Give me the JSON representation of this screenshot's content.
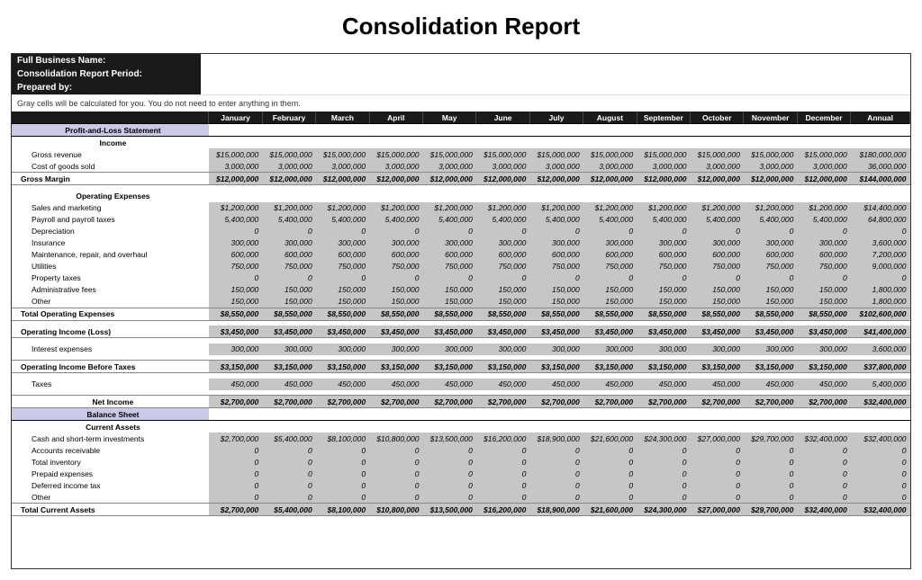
{
  "title": "Consolidation Report",
  "header": {
    "business_name_label": "Full Business Name:",
    "period_label": "Consolidation Report Period:",
    "prepared_by_label": "Prepared by:"
  },
  "note": "Gray cells will be calculated for you. You do not need to enter anything in them.",
  "months": [
    "January",
    "February",
    "March",
    "April",
    "May",
    "June",
    "July",
    "August",
    "September",
    "October",
    "November",
    "December",
    "Annual"
  ],
  "colors": {
    "band_bg": "#c9c9e8",
    "grey_bg": "#c6c6c6",
    "header_bg": "#1a1a1a",
    "text": "#000000",
    "border": "#333333"
  },
  "pl": {
    "section_label": "Profit-and-Loss Statement",
    "income_label": "Income",
    "gross_revenue": {
      "label": "Gross revenue",
      "values": [
        "$15,000,000",
        "$15,000,000",
        "$15,000,000",
        "$15,000,000",
        "$15,000,000",
        "$15,000,000",
        "$15,000,000",
        "$15,000,000",
        "$15,000,000",
        "$15,000,000",
        "$15,000,000",
        "$15,000,000",
        "$180,000,000"
      ],
      "grey": true
    },
    "cogs": {
      "label": "Cost of goods sold",
      "values": [
        "3,000,000",
        "3,000,000",
        "3,000,000",
        "3,000,000",
        "3,000,000",
        "3,000,000",
        "3,000,000",
        "3,000,000",
        "3,000,000",
        "3,000,000",
        "3,000,000",
        "3,000,000",
        "36,000,000"
      ],
      "grey": true
    },
    "gross_margin": {
      "label": "Gross Margin",
      "values": [
        "$12,000,000",
        "$12,000,000",
        "$12,000,000",
        "$12,000,000",
        "$12,000,000",
        "$12,000,000",
        "$12,000,000",
        "$12,000,000",
        "$12,000,000",
        "$12,000,000",
        "$12,000,000",
        "$12,000,000",
        "$144,000,000"
      ],
      "grey": true,
      "bold": true
    },
    "opex_label": "Operating Expenses",
    "opex_rows": [
      {
        "label": "Sales and marketing",
        "values": [
          "$1,200,000",
          "$1,200,000",
          "$1,200,000",
          "$1,200,000",
          "$1,200,000",
          "$1,200,000",
          "$1,200,000",
          "$1,200,000",
          "$1,200,000",
          "$1,200,000",
          "$1,200,000",
          "$1,200,000",
          "$14,400,000"
        ],
        "grey": true
      },
      {
        "label": "Payroll and payroll taxes",
        "values": [
          "5,400,000",
          "5,400,000",
          "5,400,000",
          "5,400,000",
          "5,400,000",
          "5,400,000",
          "5,400,000",
          "5,400,000",
          "5,400,000",
          "5,400,000",
          "5,400,000",
          "5,400,000",
          "64,800,000"
        ],
        "grey": true
      },
      {
        "label": "Depreciation",
        "values": [
          "0",
          "0",
          "0",
          "0",
          "0",
          "0",
          "0",
          "0",
          "0",
          "0",
          "0",
          "0",
          "0"
        ],
        "grey": true
      },
      {
        "label": "Insurance",
        "values": [
          "300,000",
          "300,000",
          "300,000",
          "300,000",
          "300,000",
          "300,000",
          "300,000",
          "300,000",
          "300,000",
          "300,000",
          "300,000",
          "300,000",
          "3,600,000"
        ],
        "grey": true
      },
      {
        "label": "Maintenance, repair, and overhaul",
        "values": [
          "600,000",
          "600,000",
          "600,000",
          "600,000",
          "600,000",
          "600,000",
          "600,000",
          "600,000",
          "600,000",
          "600,000",
          "600,000",
          "600,000",
          "7,200,000"
        ],
        "grey": true
      },
      {
        "label": "Utilities",
        "values": [
          "750,000",
          "750,000",
          "750,000",
          "750,000",
          "750,000",
          "750,000",
          "750,000",
          "750,000",
          "750,000",
          "750,000",
          "750,000",
          "750,000",
          "9,000,000"
        ],
        "grey": true
      },
      {
        "label": "Property taxes",
        "values": [
          "0",
          "0",
          "0",
          "0",
          "0",
          "0",
          "0",
          "0",
          "0",
          "0",
          "0",
          "0",
          "0"
        ],
        "grey": true
      },
      {
        "label": "Administrative fees",
        "values": [
          "150,000",
          "150,000",
          "150,000",
          "150,000",
          "150,000",
          "150,000",
          "150,000",
          "150,000",
          "150,000",
          "150,000",
          "150,000",
          "150,000",
          "1,800,000"
        ],
        "grey": true
      },
      {
        "label": "Other",
        "values": [
          "150,000",
          "150,000",
          "150,000",
          "150,000",
          "150,000",
          "150,000",
          "150,000",
          "150,000",
          "150,000",
          "150,000",
          "150,000",
          "150,000",
          "1,800,000"
        ],
        "grey": true
      }
    ],
    "total_opex": {
      "label": "Total Operating Expenses",
      "values": [
        "$8,550,000",
        "$8,550,000",
        "$8,550,000",
        "$8,550,000",
        "$8,550,000",
        "$8,550,000",
        "$8,550,000",
        "$8,550,000",
        "$8,550,000",
        "$8,550,000",
        "$8,550,000",
        "$8,550,000",
        "$102,600,000"
      ],
      "grey": true,
      "bold": true
    },
    "op_income": {
      "label": "Operating Income (Loss)",
      "values": [
        "$3,450,000",
        "$3,450,000",
        "$3,450,000",
        "$3,450,000",
        "$3,450,000",
        "$3,450,000",
        "$3,450,000",
        "$3,450,000",
        "$3,450,000",
        "$3,450,000",
        "$3,450,000",
        "$3,450,000",
        "$41,400,000"
      ],
      "grey": true,
      "bold": true
    },
    "interest": {
      "label": "Interest expenses",
      "values": [
        "300,000",
        "300,000",
        "300,000",
        "300,000",
        "300,000",
        "300,000",
        "300,000",
        "300,000",
        "300,000",
        "300,000",
        "300,000",
        "300,000",
        "3,600,000"
      ],
      "grey": true
    },
    "op_income_before_tax": {
      "label": "Operating Income Before Taxes",
      "values": [
        "$3,150,000",
        "$3,150,000",
        "$3,150,000",
        "$3,150,000",
        "$3,150,000",
        "$3,150,000",
        "$3,150,000",
        "$3,150,000",
        "$3,150,000",
        "$3,150,000",
        "$3,150,000",
        "$3,150,000",
        "$37,800,000"
      ],
      "grey": true,
      "bold": true
    },
    "taxes": {
      "label": "Taxes",
      "values": [
        "450,000",
        "450,000",
        "450,000",
        "450,000",
        "450,000",
        "450,000",
        "450,000",
        "450,000",
        "450,000",
        "450,000",
        "450,000",
        "450,000",
        "5,400,000"
      ],
      "grey": true
    },
    "net_income": {
      "label": "Net Income",
      "values": [
        "$2,700,000",
        "$2,700,000",
        "$2,700,000",
        "$2,700,000",
        "$2,700,000",
        "$2,700,000",
        "$2,700,000",
        "$2,700,000",
        "$2,700,000",
        "$2,700,000",
        "$2,700,000",
        "$2,700,000",
        "$32,400,000"
      ],
      "grey": true,
      "bold": true
    }
  },
  "bs": {
    "section_label": "Balance Sheet",
    "current_assets_label": "Current Assets",
    "rows": [
      {
        "label": "Cash and short-term investments",
        "values": [
          "$2,700,000",
          "$5,400,000",
          "$8,100,000",
          "$10,800,000",
          "$13,500,000",
          "$16,200,000",
          "$18,900,000",
          "$21,600,000",
          "$24,300,000",
          "$27,000,000",
          "$29,700,000",
          "$32,400,000",
          "$32,400,000"
        ],
        "grey": true
      },
      {
        "label": "Accounts receivable",
        "values": [
          "0",
          "0",
          "0",
          "0",
          "0",
          "0",
          "0",
          "0",
          "0",
          "0",
          "0",
          "0",
          "0"
        ],
        "grey": true
      },
      {
        "label": "Total inventory",
        "values": [
          "0",
          "0",
          "0",
          "0",
          "0",
          "0",
          "0",
          "0",
          "0",
          "0",
          "0",
          "0",
          "0"
        ],
        "grey": true
      },
      {
        "label": "Prepaid expenses",
        "values": [
          "0",
          "0",
          "0",
          "0",
          "0",
          "0",
          "0",
          "0",
          "0",
          "0",
          "0",
          "0",
          "0"
        ],
        "grey": true
      },
      {
        "label": "Deferred income tax",
        "values": [
          "0",
          "0",
          "0",
          "0",
          "0",
          "0",
          "0",
          "0",
          "0",
          "0",
          "0",
          "0",
          "0"
        ],
        "grey": true
      },
      {
        "label": "Other",
        "values": [
          "0",
          "0",
          "0",
          "0",
          "0",
          "0",
          "0",
          "0",
          "0",
          "0",
          "0",
          "0",
          "0"
        ],
        "grey": true
      }
    ],
    "total_current_assets": {
      "label": "Total Current Assets",
      "values": [
        "$2,700,000",
        "$5,400,000",
        "$8,100,000",
        "$10,800,000",
        "$13,500,000",
        "$16,200,000",
        "$18,900,000",
        "$21,600,000",
        "$24,300,000",
        "$27,000,000",
        "$29,700,000",
        "$32,400,000",
        "$32,400,000"
      ],
      "grey": true,
      "bold": true
    }
  }
}
